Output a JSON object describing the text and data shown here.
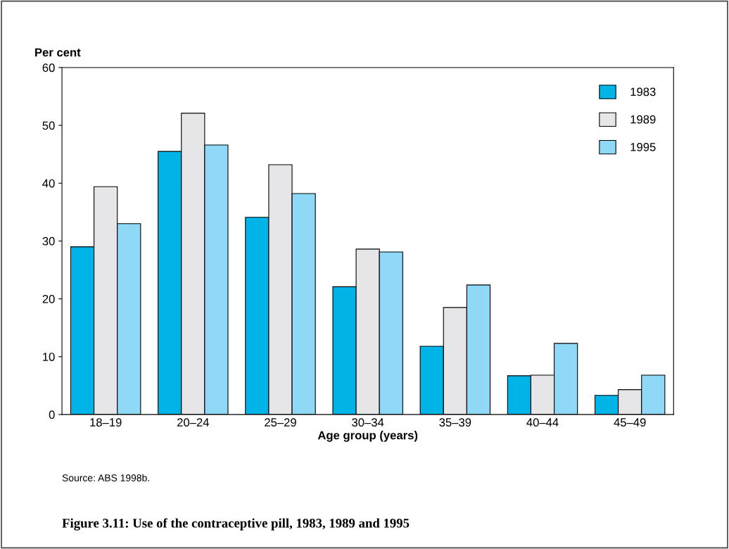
{
  "chart_data": {
    "type": "bar",
    "title": "Figure 3.11: Use of the contraceptive pill, 1983, 1989 and 1995",
    "xlabel": "Age group (years)",
    "ylabel": "Per cent",
    "annotations": [
      "Source: ABS 1998b."
    ],
    "categories": [
      "18–19",
      "20–24",
      "25–29",
      "30–34",
      "35–39",
      "40–44",
      "45–49"
    ],
    "series": [
      {
        "name": "1983",
        "color": "#00b4e8",
        "values": [
          29,
          45.5,
          34.1,
          22.1,
          11.8,
          6.7,
          3.3
        ]
      },
      {
        "name": "1989",
        "color": "#e6e6e8",
        "values": [
          39.4,
          52.1,
          43.2,
          28.6,
          18.5,
          6.8,
          4.3
        ]
      },
      {
        "name": "1995",
        "color": "#8fd8f6",
        "values": [
          33,
          46.6,
          38.2,
          28.1,
          22.4,
          12.3,
          6.8
        ]
      }
    ],
    "ylim": [
      0,
      60
    ],
    "yticks": [
      0,
      10,
      20,
      30,
      40,
      50,
      60
    ],
    "grid": false,
    "legend": "top right"
  }
}
